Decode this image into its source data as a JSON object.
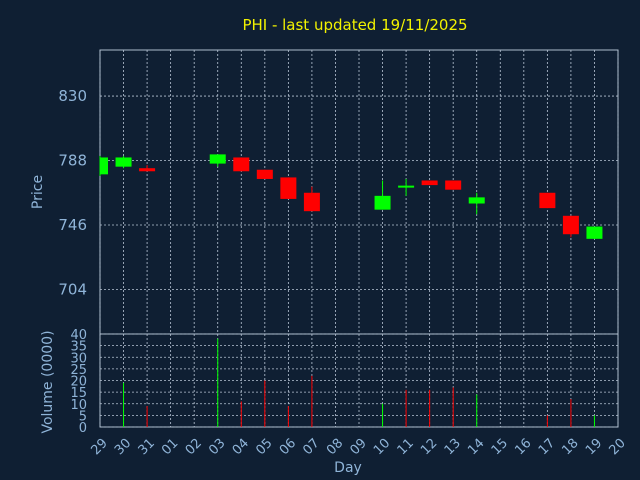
{
  "chart_data": {
    "type": "candlestick",
    "title": "PHI - last updated 19/11/2025",
    "xlabel": "Day",
    "ylabel_price": "Price",
    "ylabel_volume": "Volume (0000)",
    "x_ticks": [
      "29",
      "30",
      "31",
      "01",
      "02",
      "03",
      "04",
      "05",
      "06",
      "07",
      "08",
      "09",
      "10",
      "11",
      "12",
      "13",
      "14",
      "15",
      "16",
      "17",
      "18",
      "19",
      "20"
    ],
    "price_ticks": [
      704,
      746,
      788,
      830
    ],
    "price_ylim": [
      675,
      860
    ],
    "volume_ticks": [
      0,
      5,
      10,
      15,
      20,
      25,
      30,
      35,
      40
    ],
    "volume_ylim": [
      0,
      40
    ],
    "grid": true,
    "colors": {
      "up": "#00ff00",
      "down": "#ff0000",
      "background": "#0f1f33",
      "title": "#f2f200",
      "axis_text": "#8fb4d8"
    },
    "candles": [
      {
        "day": "29",
        "open": 779,
        "high": 791,
        "low": 778,
        "close": 790
      },
      {
        "day": "30",
        "open": 784,
        "high": 791,
        "low": 783,
        "close": 790
      },
      {
        "day": "31",
        "open": 783,
        "high": 785,
        "low": 781,
        "close": 781
      },
      {
        "day": "03",
        "open": 786,
        "high": 792,
        "low": 784,
        "close": 792
      },
      {
        "day": "04",
        "open": 790,
        "high": 790,
        "low": 781,
        "close": 781
      },
      {
        "day": "05",
        "open": 782,
        "high": 782,
        "low": 776,
        "close": 776
      },
      {
        "day": "06",
        "open": 777,
        "high": 777,
        "low": 763,
        "close": 763
      },
      {
        "day": "07",
        "open": 767,
        "high": 771,
        "low": 755,
        "close": 755
      },
      {
        "day": "10",
        "open": 756,
        "high": 775,
        "low": 756,
        "close": 765
      },
      {
        "day": "11",
        "open": 771,
        "high": 776,
        "low": 765,
        "close": 771
      },
      {
        "day": "12",
        "open": 775,
        "high": 775,
        "low": 772,
        "close": 772
      },
      {
        "day": "13",
        "open": 775,
        "high": 775,
        "low": 769,
        "close": 769
      },
      {
        "day": "14",
        "open": 760,
        "high": 767,
        "low": 753,
        "close": 764
      },
      {
        "day": "17",
        "open": 767,
        "high": 767,
        "low": 757,
        "close": 757
      },
      {
        "day": "18",
        "open": 752,
        "high": 752,
        "low": 738,
        "close": 740
      },
      {
        "day": "19",
        "open": 737,
        "high": 745,
        "low": 737,
        "close": 745
      }
    ],
    "volume": [
      {
        "day": "30",
        "value": 19,
        "dir": "up"
      },
      {
        "day": "31",
        "value": 9,
        "dir": "down"
      },
      {
        "day": "03",
        "value": 38,
        "dir": "up"
      },
      {
        "day": "04",
        "value": 11,
        "dir": "down"
      },
      {
        "day": "05",
        "value": 20,
        "dir": "down"
      },
      {
        "day": "06",
        "value": 9,
        "dir": "down"
      },
      {
        "day": "07",
        "value": 22,
        "dir": "down"
      },
      {
        "day": "10",
        "value": 10,
        "dir": "up"
      },
      {
        "day": "11",
        "value": 16,
        "dir": "down"
      },
      {
        "day": "12",
        "value": 16,
        "dir": "down"
      },
      {
        "day": "13",
        "value": 17,
        "dir": "down"
      },
      {
        "day": "14",
        "value": 14,
        "dir": "up"
      },
      {
        "day": "17",
        "value": 5,
        "dir": "down"
      },
      {
        "day": "18",
        "value": 12,
        "dir": "down"
      },
      {
        "day": "19",
        "value": 5,
        "dir": "up"
      }
    ]
  }
}
